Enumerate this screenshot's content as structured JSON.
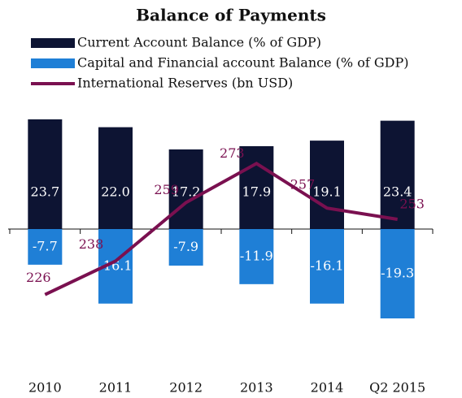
{
  "chart_data": {
    "type": "bar-line",
    "title": "Balance of Payments",
    "categories": [
      "2010",
      "2011",
      "2012",
      "2013",
      "2014",
      "Q2 2015"
    ],
    "series": [
      {
        "name": "Current Account Balance (% of GDP)",
        "color": "#0d1433",
        "type": "bar",
        "values": [
          23.7,
          22.0,
          17.2,
          17.9,
          19.1,
          23.4
        ],
        "value_labels": [
          "23.7",
          "22.0",
          "17.2",
          "17.9",
          "19.1",
          "23.4"
        ]
      },
      {
        "name": "Capital and Financial account Balance (% of GDP)",
        "color": "#1f7fd6",
        "type": "bar",
        "values": [
          -7.7,
          -16.1,
          -7.9,
          -11.9,
          -16.1,
          -19.3
        ]
      },
      {
        "name": "International Reserves (bn USD)",
        "color": "#7a1050",
        "type": "line",
        "axis": "y2",
        "values": [
          226,
          238,
          259,
          273,
          257,
          253
        ]
      }
    ],
    "ylim": [
      -25,
      25
    ],
    "y2lim": [
      208,
      291
    ]
  }
}
